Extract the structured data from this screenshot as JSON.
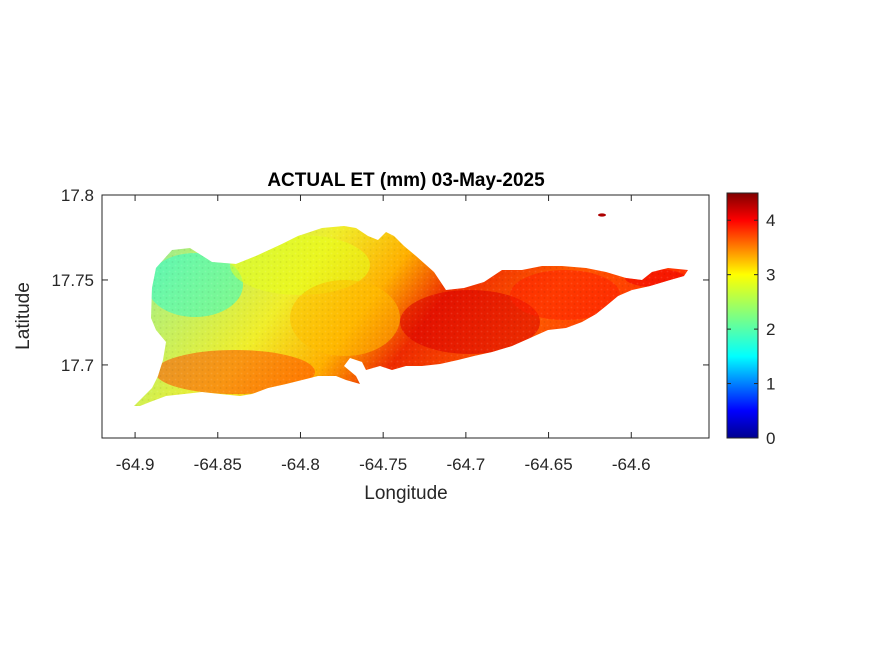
{
  "figure": {
    "title": "ACTUAL ET (mm) 03-May-2025",
    "xlabel": "Longitude",
    "ylabel": "Latitude"
  },
  "chart_data": {
    "type": "heatmap",
    "title": "ACTUAL ET (mm) 03-May-2025",
    "xlabel": "Longitude",
    "ylabel": "Latitude",
    "xlim": [
      -64.92,
      -64.553
    ],
    "ylim": [
      17.657,
      17.8
    ],
    "xticks": [
      -64.9,
      -64.85,
      -64.8,
      -64.75,
      -64.7,
      -64.65,
      -64.6
    ],
    "xtick_labels": [
      "-64.9",
      "-64.85",
      "-64.8",
      "-64.75",
      "-64.7",
      "-64.65",
      "-64.6"
    ],
    "yticks": [
      17.7,
      17.75,
      17.8
    ],
    "ytick_labels": [
      "17.7",
      "17.75",
      "17.8"
    ],
    "colormap": "jet",
    "colorbar": {
      "range": [
        0,
        4.5
      ],
      "ticks": [
        0,
        1,
        2,
        3,
        4
      ],
      "tick_labels": [
        "0",
        "1",
        "2",
        "3",
        "4"
      ]
    },
    "grid": false,
    "regions": [
      {
        "name": "northwest",
        "value": 1.9
      },
      {
        "name": "north-central",
        "value": 2.7
      },
      {
        "name": "southwest",
        "value": 3.6
      },
      {
        "name": "central",
        "value": 3.1
      },
      {
        "name": "south-central",
        "value": 4.1
      },
      {
        "name": "east",
        "value": 3.8
      },
      {
        "name": "east-end",
        "value": 4.0
      },
      {
        "name": "islet",
        "value": 4.3
      }
    ]
  }
}
